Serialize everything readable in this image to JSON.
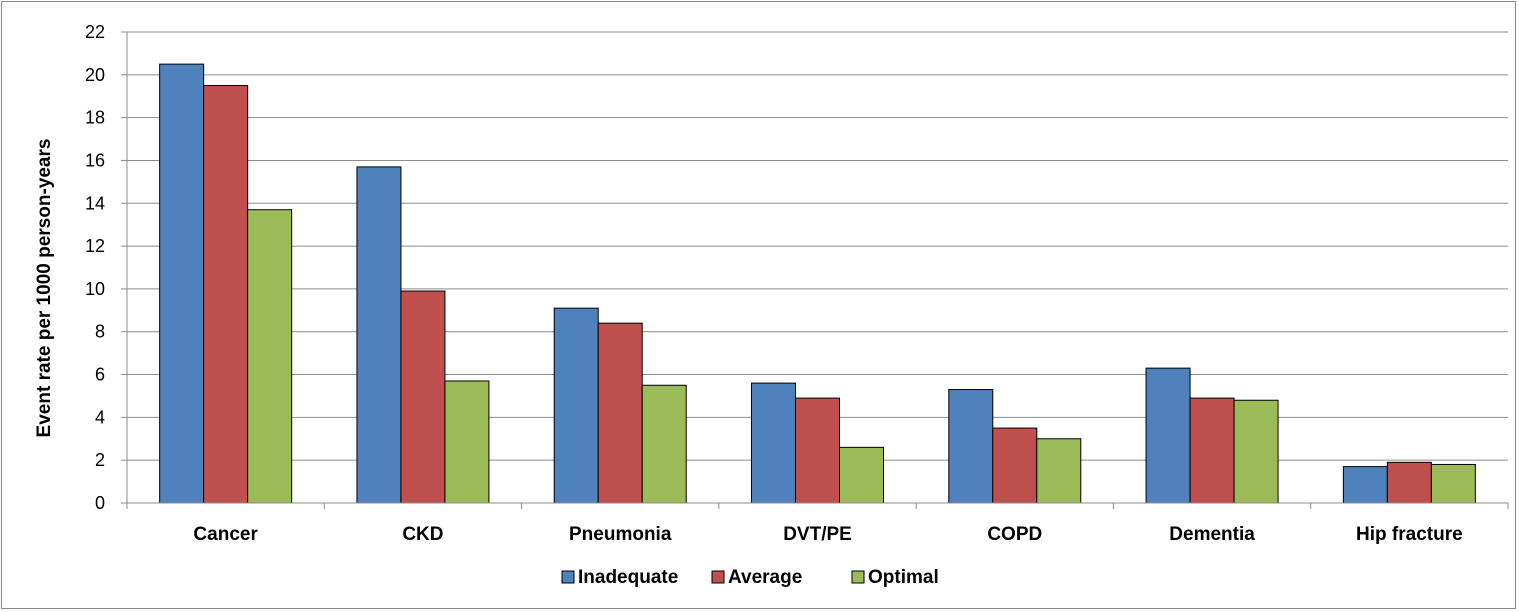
{
  "chart_data": {
    "type": "bar",
    "categories": [
      "Cancer",
      "CKD",
      "Pneumonia",
      "DVT/PE",
      "COPD",
      "Dementia",
      "Hip fracture"
    ],
    "series": [
      {
        "name": "Inadequate",
        "color": "#4F81BD",
        "values": [
          20.5,
          15.7,
          9.1,
          5.6,
          5.3,
          6.3,
          1.7
        ]
      },
      {
        "name": "Average",
        "color": "#C0504D",
        "values": [
          19.5,
          9.9,
          8.4,
          4.9,
          3.5,
          4.9,
          1.9
        ]
      },
      {
        "name": "Optimal",
        "color": "#9BBB59",
        "values": [
          13.7,
          5.7,
          5.5,
          2.6,
          3.0,
          4.8,
          1.8
        ]
      }
    ],
    "title": "",
    "xlabel": "",
    "ylabel": "Event rate per 1000 person-years",
    "ylim": [
      0,
      22
    ],
    "yticks": [
      0,
      2,
      4,
      6,
      8,
      10,
      12,
      14,
      16,
      18,
      20,
      22
    ],
    "grid": true,
    "legend_position": "bottom"
  }
}
